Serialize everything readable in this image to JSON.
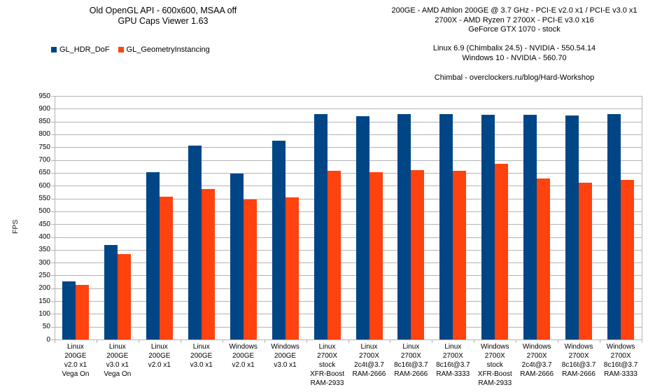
{
  "header_left": {
    "title_line1": "Old OpenGL API - 600x600, MSAA off",
    "title_line2": "GPU Caps Viewer 1.63"
  },
  "header_right": {
    "hw_lines": [
      "200GE - AMD Athlon 200GE @ 3.7 GHz - PCI-E v2.0 x1 / PCI-E v3.0 x1",
      "2700X - AMD Ryzen 7 2700X - PCI-E v3.0 x16",
      "GeForce GTX 1070 - stock"
    ],
    "os_lines": [
      "Linux 6.9 (Chimbalix 24.5) - NVIDIA - 550.54.14",
      "Windows 10 - NVIDIA - 560.70"
    ],
    "credit": "Chimbal - overclockers.ru/blog/Hard-Workshop"
  },
  "colors": {
    "series1": "#004586",
    "series2": "#FF420E",
    "gridline": "#b3b3b3",
    "text": "#000000"
  },
  "chart_data": {
    "type": "bar",
    "title": "Old OpenGL API - 600x600, MSAA off — GPU Caps Viewer 1.63",
    "xlabel": "",
    "ylabel": "FPS",
    "ylim": [
      0,
      950
    ],
    "ytick_step": 50,
    "grid": true,
    "legend_position": "top-left",
    "categories": [
      [
        "Linux",
        "200GE",
        "v2.0 x1",
        "Vega On"
      ],
      [
        "Linux",
        "200GE",
        "v3.0 x1",
        "Vega On"
      ],
      [
        "Linux",
        "200GE",
        "v2.0 x1"
      ],
      [
        "Linux",
        "200GE",
        "v3.0 x1"
      ],
      [
        "Windows",
        "200GE",
        "v2.0 x1"
      ],
      [
        "Windows",
        "200GE",
        "v3.0 x1"
      ],
      [
        "Linux",
        "2700X",
        "stock",
        "XFR-Boost",
        "RAM-2933"
      ],
      [
        "Linux",
        "2700X",
        "2c4t@3.7",
        "RAM-2666"
      ],
      [
        "Linux",
        "2700X",
        "8c16t@3.7",
        "RAM-2666"
      ],
      [
        "Linux",
        "2700X",
        "8c16t@3.7",
        "RAM-3333"
      ],
      [
        "Windows",
        "2700X",
        "stock",
        "XFR-Boost",
        "RAM-2933"
      ],
      [
        "Windows",
        "2700X",
        "2c4t@3.7",
        "RAM-2666"
      ],
      [
        "Windows",
        "2700X",
        "8c16t@3.7",
        "RAM-2666"
      ],
      [
        "Windows",
        "2700X",
        "8c16t@3.7",
        "RAM-3333"
      ]
    ],
    "series": [
      {
        "name": "GL_HDR_DoF",
        "color": "#004586",
        "values": [
          228,
          368,
          652,
          756,
          648,
          776,
          878,
          872,
          880,
          878,
          876,
          876,
          874,
          880
        ]
      },
      {
        "name": "GL_GeometryInstancing",
        "color": "#FF420E",
        "values": [
          212,
          332,
          556,
          588,
          546,
          554,
          658,
          652,
          660,
          658,
          684,
          628,
          612,
          622
        ]
      }
    ]
  }
}
